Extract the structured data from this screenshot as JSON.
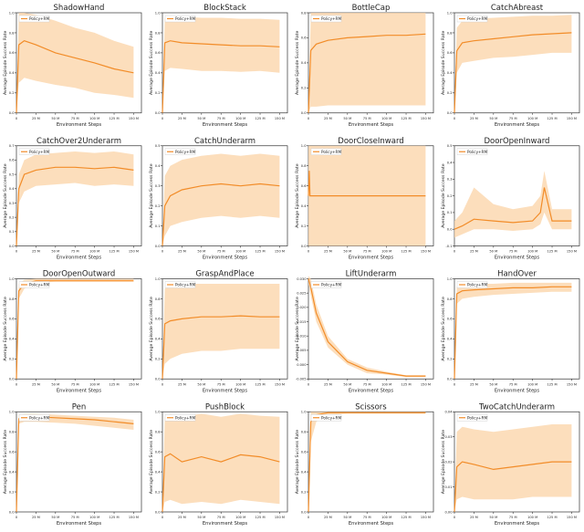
{
  "figure": {
    "legend_label": "Policy+RM",
    "x_axis_label": "Environment Steps",
    "y_axis_label": "Average Episode Success Rate",
    "x_tick_labels": [
      "0",
      "25 M",
      "50 M",
      "75 M",
      "100 M",
      "125 M",
      "150 M"
    ],
    "colors": {
      "line": "#f28c28",
      "band": "#fbd3a5",
      "axis": "#222222",
      "frame": "#333333"
    }
  },
  "chart_data": [
    {
      "type": "line",
      "title": "ShadowHand",
      "ylim": [
        0,
        1.0
      ],
      "yticks": [
        "0.0",
        "0.2",
        "0.4",
        "0.6",
        "0.8",
        "1.0"
      ],
      "series": [
        {
          "name": "Policy+RM",
          "x": [
            0,
            3,
            10,
            25,
            50,
            75,
            100,
            125,
            150
          ],
          "y": [
            0.0,
            0.68,
            0.72,
            0.68,
            0.6,
            0.55,
            0.5,
            0.44,
            0.4
          ],
          "y_low": [
            0.0,
            0.3,
            0.35,
            0.32,
            0.28,
            0.25,
            0.2,
            0.18,
            0.15
          ],
          "y_high": [
            0.0,
            1.0,
            1.0,
            0.98,
            0.92,
            0.85,
            0.8,
            0.72,
            0.66
          ]
        }
      ]
    },
    {
      "type": "line",
      "title": "BlockStack",
      "ylim": [
        0,
        1.0
      ],
      "yticks": [
        "0.0",
        "0.2",
        "0.4",
        "0.6",
        "0.8",
        "1.0"
      ],
      "series": [
        {
          "name": "Policy+RM",
          "x": [
            0,
            3,
            10,
            25,
            50,
            75,
            100,
            125,
            150
          ],
          "y": [
            0.0,
            0.7,
            0.72,
            0.7,
            0.69,
            0.68,
            0.67,
            0.67,
            0.66
          ],
          "y_low": [
            0.0,
            0.42,
            0.45,
            0.44,
            0.42,
            0.42,
            0.41,
            0.42,
            0.4
          ],
          "y_high": [
            0.0,
            0.95,
            0.97,
            0.96,
            0.95,
            0.95,
            0.94,
            0.94,
            0.93
          ]
        }
      ]
    },
    {
      "type": "line",
      "title": "BottleCap",
      "ylim": [
        0,
        0.8
      ],
      "yticks": [
        "0.0",
        "0.2",
        "0.4",
        "0.6",
        "0.8"
      ],
      "series": [
        {
          "name": "Policy+RM",
          "x": [
            0,
            3,
            10,
            25,
            50,
            75,
            100,
            125,
            150
          ],
          "y": [
            0.0,
            0.5,
            0.55,
            0.58,
            0.6,
            0.61,
            0.62,
            0.62,
            0.63
          ],
          "y_low": [
            0.0,
            0.05,
            0.05,
            0.06,
            0.06,
            0.06,
            0.06,
            0.06,
            0.06
          ],
          "y_high": [
            0.0,
            0.8,
            0.8,
            0.8,
            0.8,
            0.8,
            0.8,
            0.8,
            0.8
          ]
        }
      ]
    },
    {
      "type": "line",
      "title": "CatchAbreast",
      "ylim": [
        0,
        1.0
      ],
      "yticks": [
        "0.0",
        "0.2",
        "0.4",
        "0.6",
        "0.8",
        "1.0"
      ],
      "series": [
        {
          "name": "Policy+RM",
          "x": [
            0,
            3,
            10,
            25,
            50,
            75,
            100,
            125,
            150
          ],
          "y": [
            0.0,
            0.62,
            0.7,
            0.72,
            0.74,
            0.76,
            0.78,
            0.79,
            0.8
          ],
          "y_low": [
            0.0,
            0.4,
            0.5,
            0.52,
            0.55,
            0.56,
            0.58,
            0.6,
            0.6
          ],
          "y_high": [
            0.0,
            0.85,
            0.92,
            0.94,
            0.95,
            0.96,
            0.97,
            0.97,
            0.98
          ]
        }
      ]
    },
    {
      "type": "line",
      "title": "CatchOver2Underarm",
      "ylim": [
        0,
        0.7
      ],
      "yticks": [
        "0.0",
        "0.1",
        "0.2",
        "0.3",
        "0.4",
        "0.5",
        "0.6",
        "0.7"
      ],
      "series": [
        {
          "name": "Policy+RM",
          "x": [
            0,
            3,
            10,
            25,
            50,
            75,
            100,
            125,
            150
          ],
          "y": [
            0.0,
            0.4,
            0.5,
            0.53,
            0.55,
            0.55,
            0.54,
            0.55,
            0.53
          ],
          "y_low": [
            0.0,
            0.3,
            0.38,
            0.42,
            0.43,
            0.44,
            0.42,
            0.43,
            0.42
          ],
          "y_high": [
            0.0,
            0.5,
            0.6,
            0.64,
            0.65,
            0.66,
            0.65,
            0.66,
            0.64
          ]
        }
      ]
    },
    {
      "type": "line",
      "title": "CatchUnderarm",
      "ylim": [
        0,
        0.5
      ],
      "yticks": [
        "0.0",
        "0.1",
        "0.2",
        "0.3",
        "0.4",
        "0.5"
      ],
      "series": [
        {
          "name": "Policy+RM",
          "x": [
            0,
            3,
            10,
            25,
            50,
            75,
            100,
            125,
            150
          ],
          "y": [
            0.0,
            0.2,
            0.25,
            0.28,
            0.3,
            0.31,
            0.3,
            0.31,
            0.3
          ],
          "y_low": [
            0.0,
            0.05,
            0.1,
            0.12,
            0.14,
            0.15,
            0.14,
            0.15,
            0.14
          ],
          "y_high": [
            0.0,
            0.35,
            0.4,
            0.43,
            0.45,
            0.46,
            0.45,
            0.46,
            0.45
          ]
        }
      ]
    },
    {
      "type": "line",
      "title": "DoorCloseInward",
      "ylim": [
        0,
        1.0
      ],
      "yticks": [
        "0.0",
        "0.2",
        "0.4",
        "0.6",
        "0.8",
        "1.0"
      ],
      "series": [
        {
          "name": "Policy+RM",
          "x": [
            0,
            1,
            2,
            10,
            50,
            100,
            150
          ],
          "y": [
            0.5,
            0.75,
            0.5,
            0.5,
            0.5,
            0.5,
            0.5
          ],
          "y_low": [
            0.0,
            0.0,
            0.0,
            0.0,
            0.0,
            0.0,
            0.0
          ],
          "y_high": [
            1.0,
            1.0,
            1.0,
            1.0,
            1.0,
            1.0,
            1.0
          ]
        }
      ]
    },
    {
      "type": "line",
      "title": "DoorOpenInward",
      "ylim": [
        -0.1,
        0.5
      ],
      "yticks": [
        "-0.1",
        "0.0",
        "0.1",
        "0.2",
        "0.3",
        "0.4",
        "0.5"
      ],
      "series": [
        {
          "name": "Policy+RM",
          "x": [
            0,
            10,
            25,
            50,
            75,
            100,
            110,
            115,
            125,
            150
          ],
          "y": [
            0.0,
            0.02,
            0.06,
            0.05,
            0.04,
            0.05,
            0.1,
            0.25,
            0.05,
            0.05
          ],
          "y_low": [
            -0.05,
            -0.03,
            0.0,
            0.0,
            -0.01,
            0.0,
            0.03,
            0.1,
            0.0,
            0.0
          ],
          "y_high": [
            0.05,
            0.1,
            0.25,
            0.15,
            0.12,
            0.14,
            0.2,
            0.35,
            0.12,
            0.12
          ]
        }
      ]
    },
    {
      "type": "line",
      "title": "DoorOpenOutward",
      "ylim": [
        0,
        1.0
      ],
      "yticks": [
        "0.0",
        "0.2",
        "0.4",
        "0.6",
        "0.8",
        "1.0"
      ],
      "series": [
        {
          "name": "Policy+RM",
          "x": [
            0,
            3,
            10,
            25,
            50,
            100,
            150
          ],
          "y": [
            0.0,
            0.88,
            0.95,
            0.98,
            0.98,
            0.98,
            0.98
          ],
          "y_low": [
            0.0,
            0.8,
            0.9,
            0.96,
            0.97,
            0.97,
            0.97
          ],
          "y_high": [
            0.0,
            0.95,
            0.99,
            1.0,
            1.0,
            1.0,
            1.0
          ]
        }
      ]
    },
    {
      "type": "line",
      "title": "GraspAndPlace",
      "ylim": [
        0,
        1.0
      ],
      "yticks": [
        "0.0",
        "0.2",
        "0.4",
        "0.6",
        "0.8",
        "1.0"
      ],
      "series": [
        {
          "name": "Policy+RM",
          "x": [
            0,
            3,
            10,
            25,
            50,
            75,
            100,
            125,
            150
          ],
          "y": [
            0.0,
            0.55,
            0.58,
            0.6,
            0.62,
            0.62,
            0.63,
            0.62,
            0.62
          ],
          "y_low": [
            0.0,
            0.15,
            0.2,
            0.25,
            0.28,
            0.28,
            0.3,
            0.3,
            0.3
          ],
          "y_high": [
            0.0,
            0.9,
            0.95,
            0.95,
            0.95,
            0.95,
            0.95,
            0.95,
            0.95
          ]
        }
      ]
    },
    {
      "type": "line",
      "title": "LiftUnderarm",
      "ylim": [
        -0.005,
        0.03
      ],
      "yticks": [
        "-0.005",
        "0.000",
        "0.005",
        "0.010",
        "0.015",
        "0.020",
        "0.025",
        "0.030"
      ],
      "series": [
        {
          "name": "Policy+RM",
          "x": [
            0,
            3,
            10,
            25,
            50,
            75,
            100,
            125,
            150
          ],
          "y": [
            0.03,
            0.027,
            0.018,
            0.008,
            0.001,
            -0.002,
            -0.003,
            -0.004,
            -0.004
          ],
          "y_low": [
            0.028,
            0.024,
            0.015,
            0.006,
            0.0,
            -0.003,
            -0.0035,
            -0.0043,
            -0.0043
          ],
          "y_high": [
            0.031,
            0.03,
            0.021,
            0.01,
            0.002,
            -0.001,
            -0.0025,
            -0.0037,
            -0.0037
          ]
        }
      ]
    },
    {
      "type": "line",
      "title": "HandOver",
      "ylim": [
        0,
        1.0
      ],
      "yticks": [
        "0.0",
        "0.2",
        "0.4",
        "0.6",
        "0.8",
        "1.0"
      ],
      "series": [
        {
          "name": "Policy+RM",
          "x": [
            0,
            3,
            10,
            25,
            50,
            75,
            100,
            125,
            150
          ],
          "y": [
            0.0,
            0.85,
            0.88,
            0.89,
            0.9,
            0.91,
            0.91,
            0.92,
            0.92
          ],
          "y_low": [
            0.0,
            0.75,
            0.8,
            0.82,
            0.84,
            0.85,
            0.86,
            0.87,
            0.87
          ],
          "y_high": [
            0.0,
            0.92,
            0.94,
            0.95,
            0.95,
            0.96,
            0.96,
            0.96,
            0.96
          ]
        }
      ]
    },
    {
      "type": "line",
      "title": "Pen",
      "ylim": [
        0,
        1.0
      ],
      "yticks": [
        "0.0",
        "0.2",
        "0.4",
        "0.6",
        "0.8",
        "1.0"
      ],
      "series": [
        {
          "name": "Policy+RM",
          "x": [
            0,
            3,
            10,
            25,
            50,
            75,
            100,
            125,
            150
          ],
          "y": [
            0.0,
            0.93,
            0.95,
            0.95,
            0.94,
            0.93,
            0.92,
            0.9,
            0.88
          ],
          "y_low": [
            0.0,
            0.88,
            0.9,
            0.9,
            0.89,
            0.88,
            0.86,
            0.84,
            0.82
          ],
          "y_high": [
            0.0,
            0.97,
            0.98,
            0.98,
            0.97,
            0.96,
            0.95,
            0.94,
            0.92
          ]
        }
      ]
    },
    {
      "type": "line",
      "title": "PushBlock",
      "ylim": [
        0,
        1.0
      ],
      "yticks": [
        "0.0",
        "0.2",
        "0.4",
        "0.6",
        "0.8",
        "1.0"
      ],
      "series": [
        {
          "name": "Policy+RM",
          "x": [
            0,
            3,
            10,
            25,
            50,
            75,
            100,
            125,
            150
          ],
          "y": [
            0.0,
            0.55,
            0.58,
            0.5,
            0.55,
            0.5,
            0.57,
            0.55,
            0.5
          ],
          "y_low": [
            0.0,
            0.1,
            0.12,
            0.08,
            0.1,
            0.08,
            0.12,
            0.1,
            0.08
          ],
          "y_high": [
            0.0,
            0.95,
            0.98,
            0.95,
            0.98,
            0.95,
            0.98,
            0.96,
            0.95
          ]
        }
      ]
    },
    {
      "type": "line",
      "title": "Scissors",
      "ylim": [
        0,
        1.0
      ],
      "yticks": [
        "0.0",
        "0.2",
        "0.4",
        "0.6",
        "0.8",
        "1.0"
      ],
      "series": [
        {
          "name": "Policy+RM",
          "x": [
            0,
            3,
            10,
            25,
            50,
            75,
            100,
            125,
            150
          ],
          "y": [
            0.0,
            0.9,
            0.97,
            0.99,
            0.99,
            0.99,
            0.99,
            0.99,
            0.99
          ],
          "y_low": [
            0.0,
            0.7,
            0.9,
            0.97,
            0.98,
            0.98,
            0.98,
            0.98,
            0.98
          ],
          "y_high": [
            0.0,
            1.0,
            1.0,
            1.0,
            1.0,
            1.0,
            1.0,
            1.0,
            1.0
          ]
        }
      ]
    },
    {
      "type": "line",
      "title": "TwoCatchUnderarm",
      "ylim": [
        0,
        0.04
      ],
      "yticks": [
        "0.00",
        "0.01",
        "0.02",
        "0.03",
        "0.04"
      ],
      "series": [
        {
          "name": "Policy+RM",
          "x": [
            0,
            3,
            10,
            25,
            50,
            75,
            100,
            125,
            150
          ],
          "y": [
            0.0,
            0.018,
            0.02,
            0.019,
            0.017,
            0.018,
            0.019,
            0.02,
            0.02
          ],
          "y_low": [
            0.0,
            0.005,
            0.006,
            0.005,
            0.005,
            0.005,
            0.006,
            0.006,
            0.006
          ],
          "y_high": [
            0.0,
            0.032,
            0.034,
            0.033,
            0.032,
            0.033,
            0.034,
            0.035,
            0.035
          ]
        }
      ]
    }
  ]
}
